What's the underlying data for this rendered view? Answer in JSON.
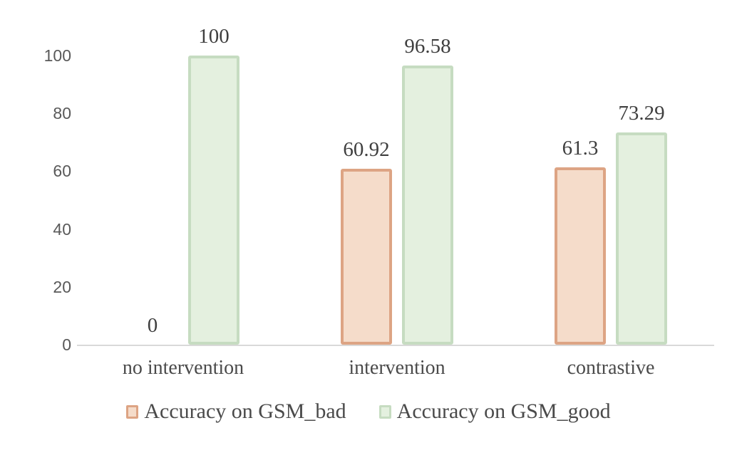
{
  "chart_data": {
    "type": "bar",
    "title": "",
    "xlabel": "",
    "ylabel": "",
    "categories": [
      "no intervention",
      "intervention",
      "contrastive"
    ],
    "series": [
      {
        "name": "Accuracy on GSM_bad",
        "values": [
          0,
          60.92,
          61.3
        ],
        "value_labels": [
          "0",
          "60.92",
          "61.3"
        ],
        "fill": "#f5dcca",
        "border": "#dda484"
      },
      {
        "name": "Accuracy on GSM_good",
        "values": [
          100,
          96.58,
          73.29
        ],
        "value_labels": [
          "100",
          "96.58",
          "73.29"
        ],
        "fill": "#e4f0df",
        "border": "#c6dcc1"
      }
    ],
    "ylim": [
      0,
      100
    ],
    "yticks": [
      0,
      20,
      40,
      60,
      80,
      100
    ],
    "ytick_labels": [
      "0",
      "20",
      "40",
      "60",
      "80",
      "100"
    ],
    "grid": false,
    "legend_position": "bottom"
  },
  "colors": {
    "background": "#ffffff",
    "axis_line": "#d9d9d9",
    "tick_text": "#595959",
    "data_label_text": "#3f3f3f",
    "category_text": "#4a4a4a",
    "legend_text": "#4a4a4a"
  }
}
